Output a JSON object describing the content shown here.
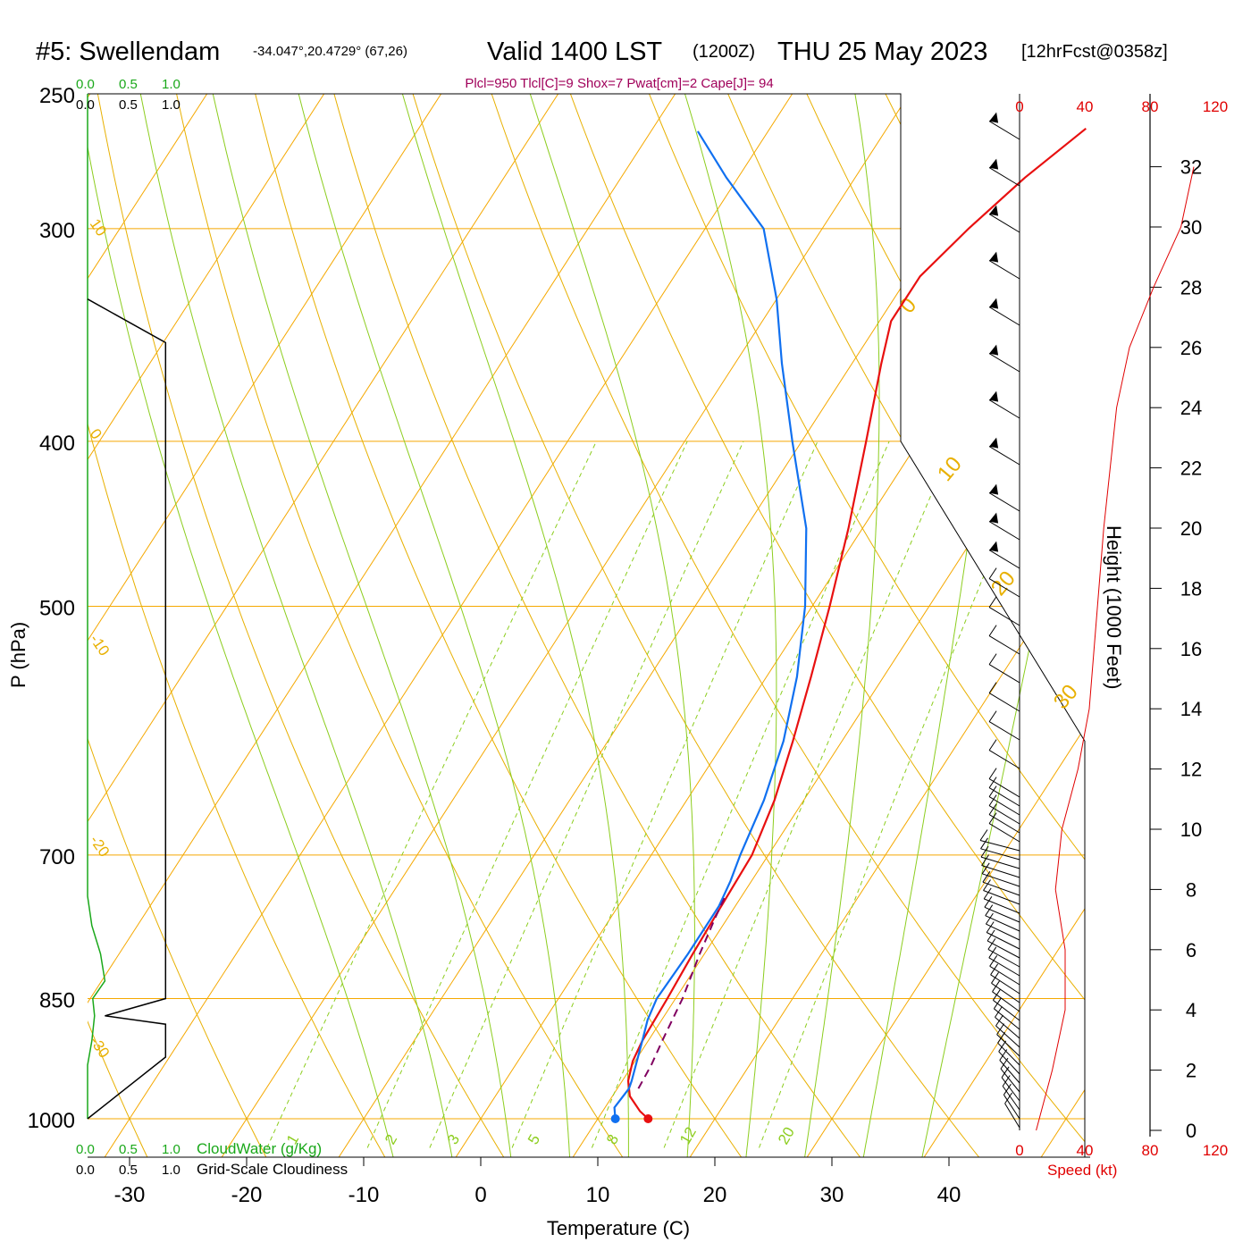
{
  "header": {
    "station": "#5: Swellendam",
    "coords": "-34.047°,20.4729° (67,26)",
    "valid": "Valid 1400 LST",
    "zulu": "(1200Z)",
    "date": "THU 25 May 2023",
    "forecast": "[12hrFcst@0358z]",
    "indices": "Plcl=950 Tlcl[C]=9 Shox=7 Pwat[cm]=2 Cape[J]= 94"
  },
  "axes": {
    "y_label": "P (hPa)",
    "x_label": "Temperature (C)",
    "height_label": "Height (1000 Feet)",
    "speed_label": "Speed (kt)",
    "cloud_water_label": "CloudWater (g/Kg)",
    "cloudiness_label": "Grid-Scale Cloudiness"
  },
  "colors": {
    "isotherm": "#f5a800",
    "dry_adiabat": "#e8b000",
    "moist_adiabat": "#8ccd1e",
    "mixing_ratio": "#8ccd1e",
    "temperature": "#e81010",
    "dewpoint": "#1070f0",
    "parcel": "#800060",
    "cloud_water": "#1aa81a",
    "title_accent": "#a0005a",
    "speed": "#e00000"
  },
  "chart_data": {
    "type": "line",
    "title": "#5: Swellendam",
    "pressure_levels": [
      250,
      300,
      400,
      500,
      700,
      850,
      1000
    ],
    "x_ticks": [
      -30,
      -20,
      -10,
      0,
      10,
      20,
      30,
      40
    ],
    "height_ticks": [
      0,
      2,
      4,
      6,
      8,
      10,
      12,
      14,
      16,
      18,
      20,
      22,
      24,
      26,
      28,
      30,
      32
    ],
    "speed_ticks": [
      0,
      40,
      80,
      120
    ],
    "cloud_ticks": [
      "0.0",
      "0.5",
      "1.0"
    ],
    "dry_adiabat_labels": [
      "10",
      "0",
      "-10",
      "-20",
      "-30"
    ],
    "moist_labels": [
      "0",
      "10",
      "20",
      "30"
    ],
    "mixing_ratio_labels": [
      "1",
      "2",
      "3",
      "5",
      "8",
      "12",
      "20"
    ],
    "series": [
      {
        "name": "Temperature",
        "points": [
          [
            1000,
            14.3
          ],
          [
            990,
            13.2
          ],
          [
            970,
            11.5
          ],
          [
            950,
            10.5
          ],
          [
            925,
            9.8
          ],
          [
            900,
            9.5
          ],
          [
            850,
            9.3
          ],
          [
            800,
            9.0
          ],
          [
            750,
            8.8
          ],
          [
            700,
            8.6
          ],
          [
            650,
            7.5
          ],
          [
            600,
            5.8
          ],
          [
            550,
            3.8
          ],
          [
            500,
            1.5
          ],
          [
            450,
            -1.2
          ],
          [
            400,
            -4.5
          ],
          [
            360,
            -7.5
          ],
          [
            340,
            -9.0
          ],
          [
            320,
            -9.0
          ],
          [
            300,
            -7.5
          ],
          [
            280,
            -5.5
          ],
          [
            262,
            -3.0
          ]
        ]
      },
      {
        "name": "Dewpoint",
        "points": [
          [
            1000,
            11.5
          ],
          [
            985,
            10.8
          ],
          [
            960,
            11.0
          ],
          [
            950,
            10.8
          ],
          [
            900,
            9.5
          ],
          [
            875,
            8.8
          ],
          [
            850,
            8.4
          ],
          [
            800,
            8.6
          ],
          [
            750,
            8.6
          ],
          [
            725,
            8.2
          ],
          [
            700,
            7.6
          ],
          [
            650,
            6.6
          ],
          [
            600,
            5.0
          ],
          [
            550,
            2.6
          ],
          [
            500,
            -0.6
          ],
          [
            450,
            -4.8
          ],
          [
            400,
            -10.8
          ],
          [
            360,
            -16.0
          ],
          [
            330,
            -20.0
          ],
          [
            300,
            -25.0
          ],
          [
            280,
            -31.0
          ],
          [
            263,
            -36.0
          ]
        ]
      },
      {
        "name": "Parcel",
        "points": [
          [
            960,
            11.8
          ],
          [
            930,
            11.6
          ],
          [
            900,
            11.2
          ],
          [
            850,
            10.6
          ],
          [
            800,
            9.6
          ],
          [
            760,
            8.9
          ],
          [
            740,
            8.6
          ]
        ]
      }
    ],
    "height_profile_kft": [
      0,
      2,
      4,
      6,
      8,
      10,
      12,
      14,
      16,
      18,
      20,
      22,
      24,
      26,
      28,
      30,
      32
    ],
    "wind_speed_kt": [
      2,
      12,
      20,
      20,
      14,
      18,
      28,
      35,
      38,
      41,
      44,
      48,
      52,
      60,
      75,
      92,
      100
    ],
    "cloud_water_gkg": [
      [
        1000,
        0.0
      ],
      [
        930,
        0.0
      ],
      [
        900,
        0.05
      ],
      [
        870,
        0.08
      ],
      [
        850,
        0.06
      ],
      [
        830,
        0.2
      ],
      [
        800,
        0.15
      ],
      [
        770,
        0.05
      ],
      [
        740,
        0.0
      ],
      [
        700,
        0.0
      ],
      [
        250,
        0.0
      ]
    ],
    "cloudiness_fraction": [
      [
        1000,
        0.0
      ],
      [
        920,
        0.9
      ],
      [
        880,
        0.9
      ],
      [
        870,
        0.2
      ],
      [
        850,
        0.9
      ],
      [
        800,
        0.9
      ],
      [
        500,
        0.9
      ],
      [
        350,
        0.9
      ],
      [
        330,
        0.0
      ]
    ]
  }
}
